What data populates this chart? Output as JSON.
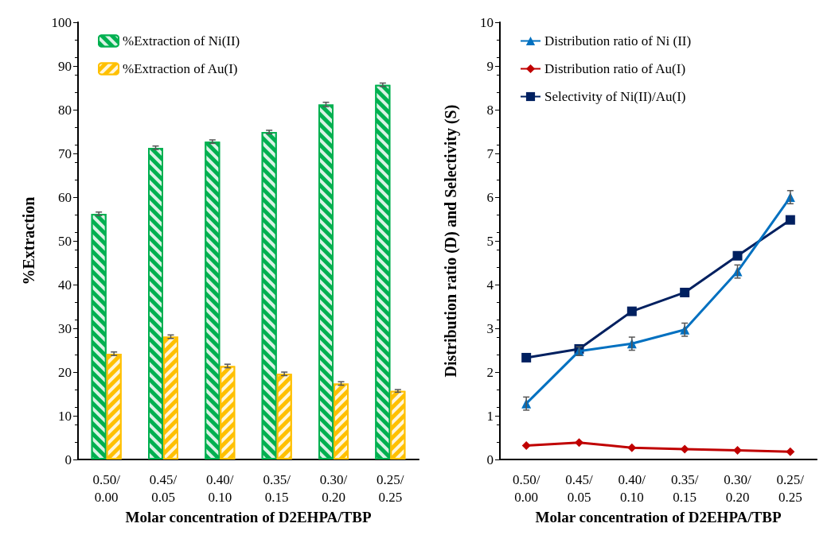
{
  "chart_data": [
    {
      "type": "bar",
      "categories": [
        "0.50/\n0.00",
        "0.45/\n0.05",
        "0.40/\n0.10",
        "0.35/\n0.15",
        "0.30/\n0.20",
        "0.25/\n0.25"
      ],
      "xlabel": "Molar concentration of D2EHPA/TBP",
      "ylabel": "%Extraction",
      "ylim": [
        0,
        100
      ],
      "yticks": [
        0,
        10,
        20,
        30,
        40,
        50,
        60,
        70,
        80,
        90,
        100
      ],
      "legend": "top left",
      "grid": false,
      "series": [
        {
          "name": "%Extraction of Ni(II)",
          "color": "#00b050",
          "values": [
            56.2,
            71.3,
            72.7,
            74.9,
            81.2,
            85.7
          ],
          "errors": [
            0.4,
            0.4,
            0.4,
            0.4,
            0.5,
            0.4
          ]
        },
        {
          "name": "%Extraction of Au(I)",
          "color": "#ffc000",
          "values": [
            24.2,
            28.1,
            21.4,
            19.6,
            17.4,
            15.7
          ],
          "errors": [
            0.4,
            0.4,
            0.4,
            0.4,
            0.4,
            0.3
          ]
        }
      ]
    },
    {
      "type": "line",
      "categories": [
        "0.50/\n0.00",
        "0.45/\n0.05",
        "0.40/\n0.10",
        "0.35/\n0.15",
        "0.30/\n0.20",
        "0.25/\n0.25"
      ],
      "xlabel": "Molar concentration of D2EHPA/TBP",
      "ylabel": "Distribution ratio (D) and Selectivity (S)",
      "ylim": [
        0,
        10
      ],
      "yticks": [
        0,
        1,
        2,
        3,
        4,
        5,
        6,
        7,
        8,
        9,
        10
      ],
      "legend": "top left",
      "grid": false,
      "series": [
        {
          "name": "Distribution ratio of Ni (II)",
          "color": "#0070c0",
          "marker": "triangle",
          "values": [
            1.28,
            2.48,
            2.65,
            2.97,
            4.3,
            6.0
          ],
          "errors": [
            0.15,
            0.1,
            0.15,
            0.15,
            0.15,
            0.15
          ]
        },
        {
          "name": "Distribution ratio of Au(I)",
          "color": "#c00000",
          "marker": "diamond",
          "values": [
            0.32,
            0.39,
            0.27,
            0.24,
            0.21,
            0.18
          ]
        },
        {
          "name": "Selectivity of Ni(II)/Au(I)",
          "color": "#002060",
          "marker": "square",
          "values": [
            2.33,
            2.53,
            3.39,
            3.82,
            4.66,
            5.48
          ]
        }
      ]
    }
  ]
}
